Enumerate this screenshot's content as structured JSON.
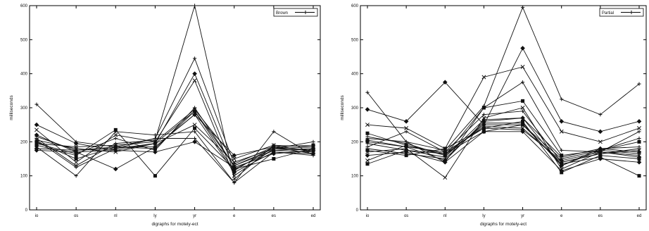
{
  "chart_data": [
    {
      "type": "line",
      "title": "",
      "xlabel": "digraphs for motely-ect",
      "ylabel": "milliseconds",
      "categories": [
        "io",
        "os",
        "nl",
        "ly",
        "yr",
        "e",
        "es",
        "ed"
      ],
      "yticks": [
        "0",
        "100",
        "200",
        "300",
        "400",
        "500",
        "600"
      ],
      "ylim": [
        0,
        600
      ],
      "legend": {
        "label": "Brown",
        "position": "top-right"
      },
      "grid": false,
      "series": [
        {
          "values": [
            310,
            200,
            185,
            210,
            445,
            135,
            185,
            165
          ]
        },
        {
          "values": [
            250,
            195,
            175,
            195,
            400,
            120,
            175,
            180
          ]
        },
        {
          "values": [
            235,
            140,
            220,
            200,
            380,
            100,
            180,
            175
          ]
        },
        {
          "values": [
            210,
            130,
            195,
            205,
            600,
            90,
            190,
            170
          ]
        },
        {
          "values": [
            200,
            150,
            185,
            180,
            290,
            115,
            185,
            190
          ]
        },
        {
          "values": [
            195,
            165,
            210,
            175,
            300,
            130,
            180,
            200
          ]
        },
        {
          "values": [
            220,
            170,
            120,
            185,
            280,
            110,
            170,
            165
          ]
        },
        {
          "values": [
            205,
            180,
            170,
            195,
            250,
            140,
            180,
            185
          ]
        },
        {
          "values": [
            185,
            100,
            230,
            220,
            230,
            80,
            230,
            160
          ]
        },
        {
          "values": [
            190,
            160,
            235,
            100,
            240,
            120,
            150,
            180
          ]
        },
        {
          "values": [
            175,
            170,
            175,
            170,
            200,
            125,
            165,
            175
          ]
        },
        {
          "values": [
            215,
            175,
            180,
            195,
            290,
            130,
            175,
            170
          ]
        },
        {
          "values": [
            195,
            185,
            190,
            200,
            295,
            150,
            190,
            185
          ]
        },
        {
          "values": [
            205,
            125,
            180,
            210,
            210,
            80,
            170,
            160
          ]
        },
        {
          "values": [
            180,
            175,
            185,
            185,
            280,
            160,
            185,
            175
          ]
        }
      ]
    },
    {
      "type": "line",
      "title": "",
      "xlabel": "digraphs for motely-ect",
      "ylabel": "milliseconds",
      "categories": [
        "io",
        "os",
        "nl",
        "ly",
        "yr",
        "e",
        "es",
        "ed"
      ],
      "yticks": [
        "0",
        "100",
        "200",
        "300",
        "400",
        "500",
        "600"
      ],
      "ylim": [
        0,
        600
      ],
      "legend": {
        "label": "Partial",
        "position": "top-right"
      },
      "grid": false,
      "series": [
        {
          "values": [
            345,
            200,
            175,
            305,
            595,
            325,
            280,
            370
          ]
        },
        {
          "values": [
            295,
            260,
            375,
            250,
            475,
            260,
            230,
            260
          ]
        },
        {
          "values": [
            250,
            240,
            180,
            390,
            420,
            230,
            200,
            240
          ]
        },
        {
          "values": [
            210,
            200,
            140,
            300,
            375,
            175,
            170,
            230
          ]
        },
        {
          "values": [
            225,
            190,
            160,
            300,
            320,
            160,
            175,
            200
          ]
        },
        {
          "values": [
            185,
            230,
            170,
            280,
            290,
            140,
            165,
            180
          ]
        },
        {
          "values": [
            200,
            185,
            145,
            260,
            270,
            130,
            180,
            170
          ]
        },
        {
          "values": [
            170,
            180,
            95,
            270,
            300,
            120,
            170,
            160
          ]
        },
        {
          "values": [
            215,
            195,
            160,
            250,
            250,
            150,
            175,
            210
          ]
        },
        {
          "values": [
            175,
            160,
            180,
            240,
            260,
            110,
            160,
            150
          ]
        },
        {
          "values": [
            160,
            170,
            140,
            230,
            230,
            115,
            150,
            140
          ]
        },
        {
          "values": [
            195,
            175,
            155,
            265,
            270,
            155,
            180,
            185
          ]
        },
        {
          "values": [
            145,
            190,
            165,
            245,
            240,
            140,
            165,
            175
          ]
        },
        {
          "values": [
            180,
            165,
            150,
            255,
            255,
            130,
            175,
            165
          ]
        },
        {
          "values": [
            205,
            185,
            170,
            240,
            235,
            145,
            170,
            155
          ]
        },
        {
          "values": [
            135,
            175,
            165,
            230,
            250,
            135,
            155,
            100
          ]
        }
      ]
    }
  ]
}
